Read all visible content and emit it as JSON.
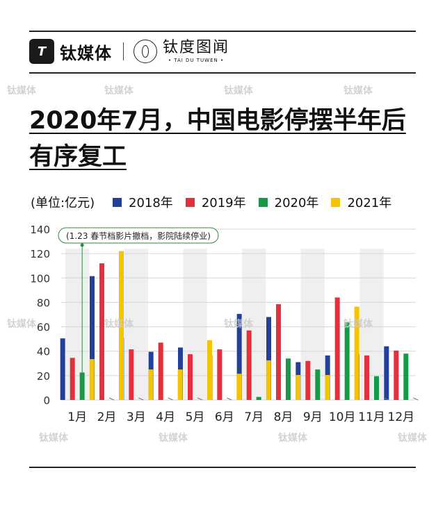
{
  "brand": {
    "logo_letter": "T",
    "name": "钛媒体",
    "partner_cn": "钛度图闻",
    "partner_en": "• TAI DU TUWEN •"
  },
  "title": {
    "line1": "2020年7月，中国电影停摆半年后",
    "line2": "有序复工"
  },
  "unit_label": "(单位:亿元)",
  "watermark": "钛媒体",
  "colors": {
    "2018年": "#223f9a",
    "2019年": "#e3303c",
    "2020年": "#179a47",
    "2021年": "#f5c400",
    "shade": "#efefef",
    "annotation": "#2b8a3e"
  },
  "chart_data": {
    "type": "bar",
    "categories": [
      "1月",
      "2月",
      "3月",
      "4月",
      "5月",
      "6月",
      "7月",
      "8月",
      "9月",
      "10月",
      "11月",
      "12月"
    ],
    "series": [
      {
        "name": "2018年",
        "values": [
          50.5,
          101.5,
          51,
          39.5,
          43,
          36.5,
          70.5,
          68,
          31,
          36.5,
          37.5,
          44
        ]
      },
      {
        "name": "2019年",
        "values": [
          34.5,
          112,
          41.5,
          47,
          37.5,
          41.5,
          57,
          78.5,
          32,
          84,
          36.5,
          40.5
        ]
      },
      {
        "name": "2020年",
        "values": [
          22.5,
          0,
          0,
          0,
          0,
          0,
          2.5,
          34,
          25,
          63.5,
          19.5,
          38
        ]
      },
      {
        "name": "2021年",
        "values": [
          33.5,
          122,
          25,
          25,
          49,
          21.5,
          32.5,
          20.5,
          20.5,
          76.5,
          0,
          0
        ]
      }
    ],
    "ylim": [
      0,
      140
    ],
    "yticks": [
      "0",
      "20",
      "40",
      "60",
      "80",
      "100",
      "120",
      "140"
    ],
    "grid": true,
    "legend_position": "top",
    "annotation": {
      "text": "(1.23 春节档影片撤档，影院陆续停业)",
      "category": "1月",
      "series": "2020年"
    }
  }
}
